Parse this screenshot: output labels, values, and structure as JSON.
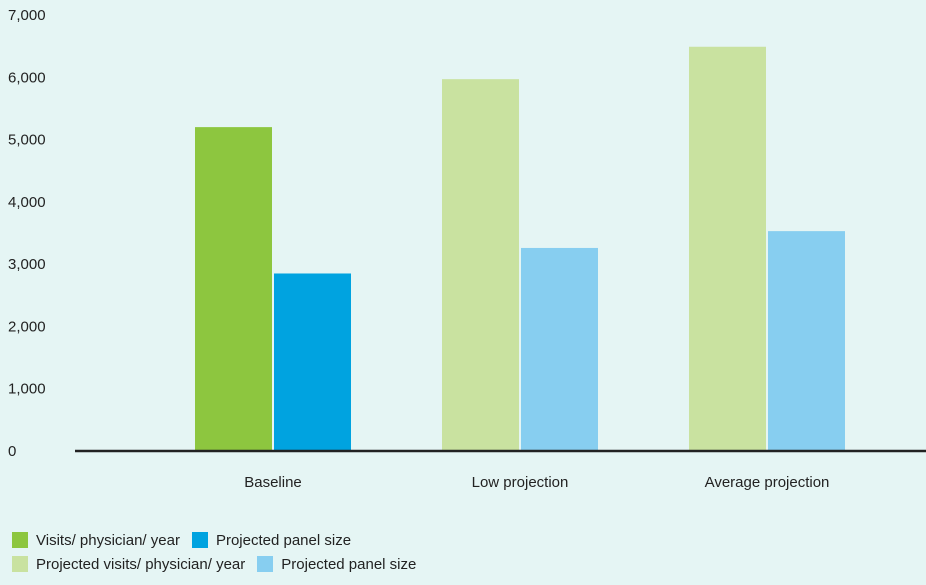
{
  "chart_data": {
    "type": "bar",
    "categories": [
      "Baseline",
      "Low projection",
      "Average projection"
    ],
    "ylim": [
      0,
      7000
    ],
    "yticks": [
      "0",
      "1,000",
      "2,000",
      "3,000",
      "4,000",
      "5,000",
      "6,000",
      "7,000"
    ],
    "grid": false,
    "legend_placement": "bottom-left",
    "bars": [
      {
        "category": "Baseline",
        "visits": 5200,
        "panel": 2850,
        "visits_color": "#8dc63f",
        "panel_color": "#00a3e0"
      },
      {
        "category": "Low projection",
        "visits": 5970,
        "panel": 3260,
        "visits_color": "#c9e2a0",
        "panel_color": "#87cef0"
      },
      {
        "category": "Average projection",
        "visits": 6490,
        "panel": 3530,
        "visits_color": "#c9e2a0",
        "panel_color": "#87cef0"
      }
    ]
  },
  "legend": {
    "row1": [
      {
        "label": "Visits/ physician/ year",
        "color": "#8dc63f"
      },
      {
        "label": "Projected panel size",
        "color": "#00a3e0"
      }
    ],
    "row2": [
      {
        "label": "Projected visits/ physician/ year",
        "color": "#c9e2a0"
      },
      {
        "label": "Projected panel size",
        "color": "#87cef0"
      }
    ]
  }
}
